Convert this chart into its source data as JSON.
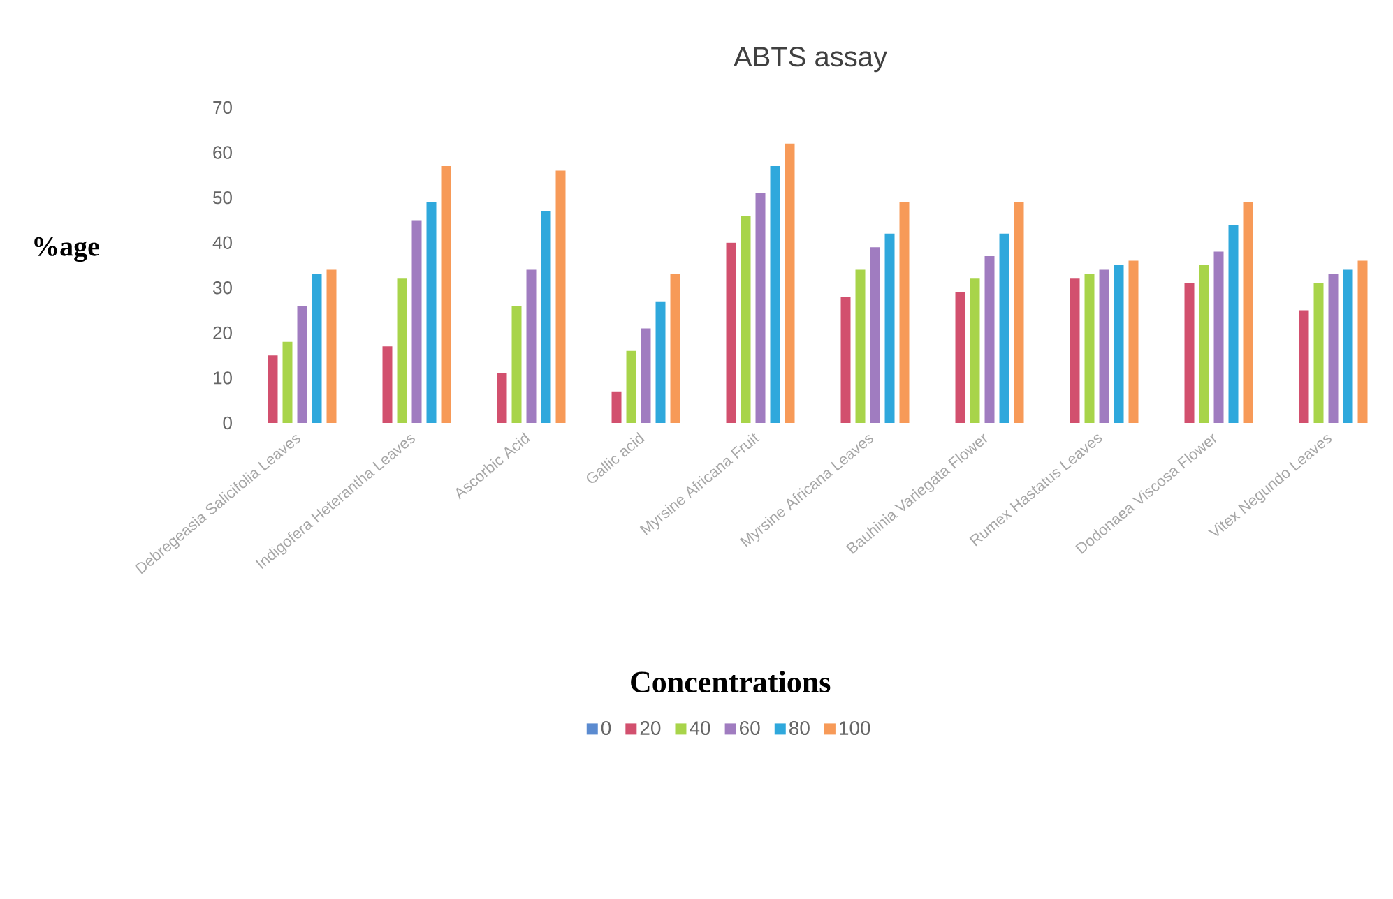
{
  "chart_data": {
    "type": "bar",
    "title": "ABTS assay",
    "xlabel": "Concentrations",
    "ylabel": "%age",
    "categories": [
      "Debregeasia Salicifolia Leaves",
      "Indigofera Heterantha Leaves",
      "Ascorbic Acid",
      "Gallic acid",
      "Myrsine Africana Fruit",
      "Myrsine Africana Leaves",
      "Bauhinia Variegata Flower",
      "Rumex Hastatus Leaves",
      "Dodonaea Viscosa Flower",
      "Vitex Negundo Leaves"
    ],
    "series": [
      {
        "name": "0",
        "color": "#5b8bd0",
        "values": [
          0,
          0,
          0,
          0,
          0,
          0,
          0,
          0,
          0,
          0
        ]
      },
      {
        "name": "20",
        "color": "#d2506e",
        "values": [
          15,
          17,
          11,
          7,
          40,
          28,
          29,
          32,
          31,
          25
        ]
      },
      {
        "name": "40",
        "color": "#a8d44a",
        "values": [
          18,
          32,
          26,
          16,
          46,
          34,
          32,
          33,
          35,
          31
        ]
      },
      {
        "name": "60",
        "color": "#a07cc0",
        "values": [
          26,
          45,
          34,
          21,
          51,
          39,
          37,
          34,
          38,
          33
        ]
      },
      {
        "name": "80",
        "color": "#2fa8dc",
        "values": [
          33,
          49,
          47,
          27,
          57,
          42,
          42,
          35,
          44,
          34
        ]
      },
      {
        "name": "100",
        "color": "#f79a58",
        "values": [
          34,
          57,
          56,
          33,
          62,
          49,
          49,
          36,
          49,
          36
        ]
      }
    ],
    "ylim": [
      0,
      70
    ],
    "yticks": [
      0,
      10,
      20,
      30,
      40,
      50,
      60,
      70
    ],
    "grid": false,
    "legend": "bottom"
  }
}
